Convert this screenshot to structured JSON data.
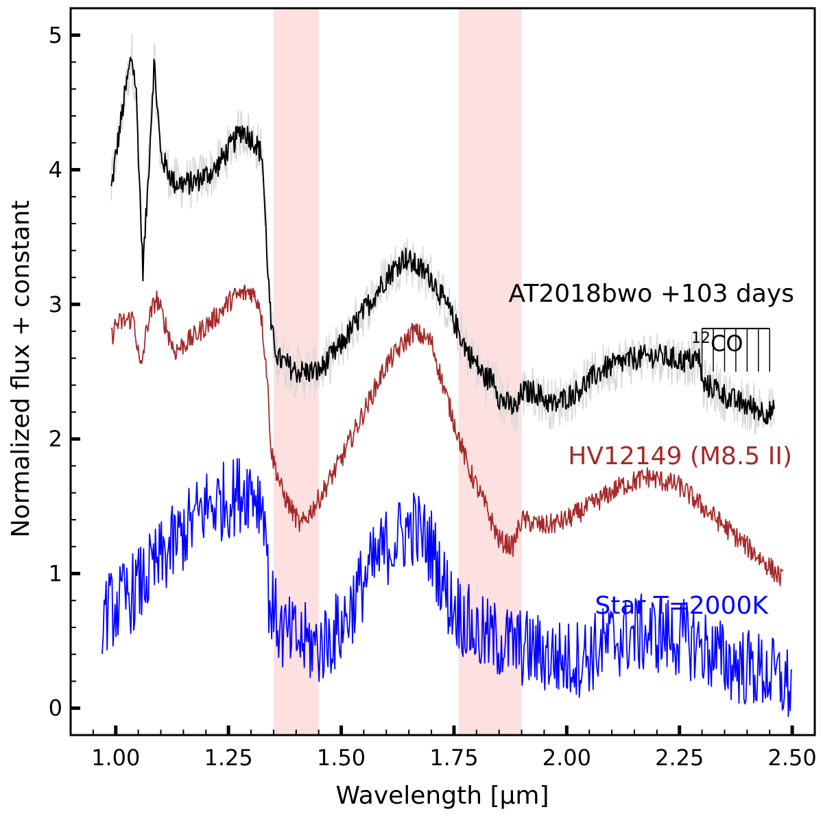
{
  "chart_data": {
    "type": "line",
    "xlabel": "Wavelength [μm]",
    "ylabel": "Normalized flux + constant",
    "xlim": [
      0.9,
      2.55
    ],
    "ylim": [
      -0.2,
      5.2
    ],
    "x_ticks": [
      "1.00",
      "1.25",
      "1.50",
      "1.75",
      "2.00",
      "2.25",
      "2.50"
    ],
    "y_ticks": [
      "0",
      "1",
      "2",
      "3",
      "4",
      "5"
    ],
    "grid": false,
    "shaded_bands": [
      [
        1.35,
        1.45
      ],
      [
        1.76,
        1.9
      ]
    ],
    "shade_color": "#fde0e0",
    "series": [
      {
        "name": "AT2018bwo +103 days",
        "color": "#000000",
        "label_color": "#000000",
        "points": [
          [
            0.99,
            3.85
          ],
          [
            1.0,
            4.1
          ],
          [
            1.02,
            4.55
          ],
          [
            1.035,
            4.85
          ],
          [
            1.045,
            4.6
          ],
          [
            1.06,
            3.25
          ],
          [
            1.07,
            3.8
          ],
          [
            1.085,
            4.8
          ],
          [
            1.1,
            4.1
          ],
          [
            1.13,
            3.9
          ],
          [
            1.17,
            3.9
          ],
          [
            1.22,
            4.0
          ],
          [
            1.26,
            4.2
          ],
          [
            1.28,
            4.3
          ],
          [
            1.31,
            4.2
          ],
          [
            1.325,
            4.1
          ],
          [
            1.335,
            3.4
          ],
          [
            1.345,
            2.8
          ],
          [
            1.36,
            2.6
          ],
          [
            1.4,
            2.5
          ],
          [
            1.45,
            2.5
          ],
          [
            1.5,
            2.7
          ],
          [
            1.55,
            2.95
          ],
          [
            1.6,
            3.2
          ],
          [
            1.64,
            3.35
          ],
          [
            1.7,
            3.2
          ],
          [
            1.74,
            2.95
          ],
          [
            1.78,
            2.65
          ],
          [
            1.82,
            2.45
          ],
          [
            1.84,
            2.45
          ],
          [
            1.85,
            2.3
          ],
          [
            1.89,
            2.22
          ],
          [
            1.9,
            2.35
          ],
          [
            1.93,
            2.35
          ],
          [
            1.97,
            2.25
          ],
          [
            2.02,
            2.35
          ],
          [
            2.08,
            2.52
          ],
          [
            2.15,
            2.6
          ],
          [
            2.2,
            2.62
          ],
          [
            2.26,
            2.58
          ],
          [
            2.295,
            2.6
          ],
          [
            2.3,
            2.4
          ],
          [
            2.33,
            2.38
          ],
          [
            2.36,
            2.3
          ],
          [
            2.4,
            2.25
          ],
          [
            2.44,
            2.2
          ],
          [
            2.46,
            2.2
          ]
        ],
        "noise": 0.09
      },
      {
        "name": "HV12149 (M8.5 II)",
        "color": "#a52a2a",
        "label_color": "#a52a2a",
        "points": [
          [
            0.99,
            2.75
          ],
          [
            1.0,
            2.85
          ],
          [
            1.04,
            2.9
          ],
          [
            1.055,
            2.5
          ],
          [
            1.07,
            2.85
          ],
          [
            1.09,
            3.05
          ],
          [
            1.11,
            2.85
          ],
          [
            1.13,
            2.65
          ],
          [
            1.17,
            2.75
          ],
          [
            1.22,
            2.9
          ],
          [
            1.26,
            3.05
          ],
          [
            1.3,
            3.1
          ],
          [
            1.32,
            3.0
          ],
          [
            1.335,
            2.5
          ],
          [
            1.345,
            1.9
          ],
          [
            1.37,
            1.6
          ],
          [
            1.41,
            1.35
          ],
          [
            1.45,
            1.55
          ],
          [
            1.5,
            1.85
          ],
          [
            1.55,
            2.2
          ],
          [
            1.6,
            2.55
          ],
          [
            1.66,
            2.8
          ],
          [
            1.7,
            2.72
          ],
          [
            1.73,
            2.35
          ],
          [
            1.78,
            1.8
          ],
          [
            1.82,
            1.5
          ],
          [
            1.85,
            1.25
          ],
          [
            1.88,
            1.2
          ],
          [
            1.9,
            1.4
          ],
          [
            1.95,
            1.35
          ],
          [
            2.0,
            1.4
          ],
          [
            2.05,
            1.5
          ],
          [
            2.12,
            1.65
          ],
          [
            2.18,
            1.72
          ],
          [
            2.25,
            1.65
          ],
          [
            2.3,
            1.5
          ],
          [
            2.35,
            1.35
          ],
          [
            2.4,
            1.2
          ],
          [
            2.45,
            1.05
          ],
          [
            2.48,
            0.95
          ]
        ],
        "noise": 0.08
      },
      {
        "name": "Star T=2000K",
        "color": "#0000ff",
        "label_color": "#0000ff",
        "points": [
          [
            0.97,
            0.7
          ],
          [
            1.0,
            0.75
          ],
          [
            1.05,
            0.9
          ],
          [
            1.1,
            1.1
          ],
          [
            1.15,
            1.3
          ],
          [
            1.2,
            1.5
          ],
          [
            1.25,
            1.55
          ],
          [
            1.3,
            1.65
          ],
          [
            1.33,
            1.5
          ],
          [
            1.34,
            0.8
          ],
          [
            1.37,
            0.55
          ],
          [
            1.45,
            0.45
          ],
          [
            1.5,
            0.6
          ],
          [
            1.55,
            0.95
          ],
          [
            1.6,
            1.2
          ],
          [
            1.66,
            1.35
          ],
          [
            1.7,
            1.2
          ],
          [
            1.74,
            0.8
          ],
          [
            1.8,
            0.55
          ],
          [
            1.85,
            0.5
          ],
          [
            1.9,
            0.45
          ],
          [
            2.0,
            0.35
          ],
          [
            2.05,
            0.4
          ],
          [
            2.1,
            0.5
          ],
          [
            2.15,
            0.55
          ],
          [
            2.2,
            0.55
          ],
          [
            2.28,
            0.5
          ],
          [
            2.35,
            0.35
          ],
          [
            2.45,
            0.25
          ],
          [
            2.5,
            0.15
          ]
        ],
        "noise": 0.3
      }
    ],
    "annotations": {
      "co_label_sup": "12",
      "co_label_main": "CO",
      "co_ticks": [
        2.3,
        2.325,
        2.35,
        2.375,
        2.4,
        2.425,
        2.45
      ],
      "co_bar_y": 2.82,
      "co_tick_bottom": 2.5
    }
  }
}
